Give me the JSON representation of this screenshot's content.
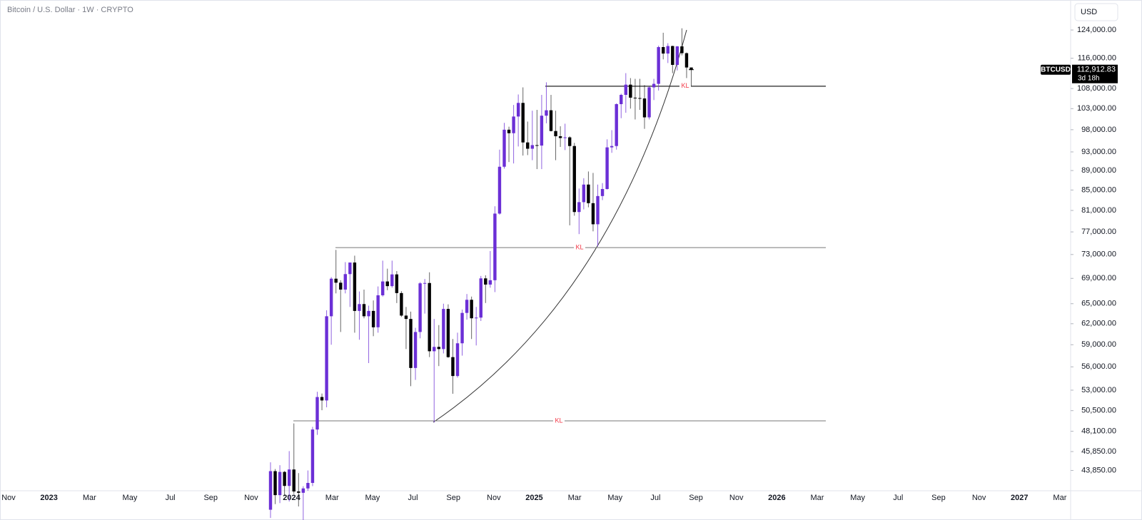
{
  "chart_data": {
    "type": "candlestick",
    "title": "Bitcoin / U.S. Dollar · 1W · CRYPTO",
    "currency_button": "USD",
    "log_scale": true,
    "up_color": "#6b2fd6",
    "down_color": "#000000",
    "ylim": [
      41800,
      133100
    ],
    "yticks": [
      {
        "value": 124000,
        "label": "124,000.00"
      },
      {
        "value": 116000,
        "label": "116,000.00"
      },
      {
        "value": 108000,
        "label": "108,000.00"
      },
      {
        "value": 103000,
        "label": "103,000.00"
      },
      {
        "value": 98000,
        "label": "98,000.00"
      },
      {
        "value": 93000,
        "label": "93,000.00"
      },
      {
        "value": 89000,
        "label": "89,000.00"
      },
      {
        "value": 85000,
        "label": "85,000.00"
      },
      {
        "value": 81000,
        "label": "81,000.00"
      },
      {
        "value": 77000,
        "label": "77,000.00"
      },
      {
        "value": 73000,
        "label": "73,000.00"
      },
      {
        "value": 69000,
        "label": "69,000.00"
      },
      {
        "value": 65000,
        "label": "65,000.00"
      },
      {
        "value": 62000,
        "label": "62,000.00"
      },
      {
        "value": 59000,
        "label": "59,000.00"
      },
      {
        "value": 56000,
        "label": "56,000.00"
      },
      {
        "value": 53000,
        "label": "53,000.00"
      },
      {
        "value": 50500,
        "label": "50,500.00"
      },
      {
        "value": 48100,
        "label": "48,100.00"
      },
      {
        "value": 45850,
        "label": "45,850.00"
      },
      {
        "value": 43850,
        "label": "43,850.00"
      }
    ],
    "x_labels": [
      "Nov",
      "2023",
      "Mar",
      "May",
      "Jul",
      "Sep",
      "Nov",
      "2024",
      "Mar",
      "May",
      "Jul",
      "Sep",
      "Nov",
      "2025",
      "Mar",
      "May",
      "Jul",
      "Sep",
      "Nov",
      "2026",
      "Mar",
      "May",
      "Jul",
      "Sep",
      "Nov",
      "2027",
      "Mar"
    ],
    "levels": [
      {
        "value": 108600,
        "label": "KL"
      },
      {
        "value": 74200,
        "label": "KL"
      },
      {
        "value": 49300,
        "label": "KL"
      }
    ],
    "last_price": {
      "symbol": "BTCUSD",
      "value": 112912.83,
      "label": "112,912.83",
      "countdown": "3d 18h"
    },
    "open": [
      39970,
      43780,
      41370,
      43700,
      42280,
      43950,
      41730,
      41600,
      42030,
      42580,
      48300,
      52150,
      51730,
      63100,
      68950,
      68300,
      67200,
      69700,
      71630,
      63900,
      64940,
      63100,
      63900,
      61480,
      66300,
      68500,
      67750,
      69650,
      66650,
      63200,
      62700,
      55850,
      60800,
      68200,
      68250,
      58100,
      58700,
      58400,
      64200,
      57300,
      54800,
      59200,
      63600,
      65600,
      62800,
      62900,
      69000,
      68000,
      68700,
      80400,
      89800,
      98000,
      97200,
      101100,
      104400,
      95100,
      93700,
      94500,
      94400,
      101300,
      102600,
      97700,
      96500,
      96100,
      96250,
      94300,
      80700,
      82600,
      86100,
      82400,
      78400,
      83800,
      85200,
      94000,
      94300,
      104100,
      106400,
      109000,
      105700,
      105600,
      105500,
      100900,
      108300,
      109200,
      119100,
      117300,
      119400,
      114200,
      119300,
      117400,
      113500
    ],
    "high": [
      44700,
      44000,
      44400,
      43800,
      45900,
      49000,
      43580,
      42250,
      43850,
      48600,
      52800,
      52580,
      64000,
      69200,
      73800,
      68700,
      71700,
      71300,
      72800,
      66900,
      67200,
      64700,
      65500,
      67700,
      71950,
      70600,
      71950,
      70200,
      66950,
      64500,
      63800,
      61400,
      68400,
      68900,
      70000,
      62700,
      61800,
      65000,
      64900,
      59800,
      60700,
      64100,
      66500,
      66100,
      64500,
      69400,
      69500,
      73600,
      81800,
      93500,
      99600,
      98700,
      103900,
      106500,
      108300,
      99900,
      102500,
      102700,
      106400,
      109600,
      106400,
      102500,
      98800,
      99400,
      96500,
      95000,
      85300,
      87400,
      88800,
      88500,
      86100,
      86400,
      95800,
      97900,
      104300,
      106700,
      112000,
      110700,
      110500,
      110500,
      108900,
      108500,
      110500,
      119500,
      123200,
      120200,
      119500,
      119400,
      124500,
      117600,
      113500
    ],
    "low": [
      39200,
      40500,
      40600,
      41300,
      40750,
      41500,
      40280,
      38550,
      41800,
      42260,
      47700,
      50550,
      50900,
      59000,
      66600,
      60800,
      66600,
      64500,
      60700,
      59700,
      62800,
      56500,
      60200,
      60700,
      66100,
      67100,
      67500,
      65100,
      63000,
      58400,
      53500,
      54300,
      59900,
      63500,
      57300,
      49100,
      56100,
      57800,
      57200,
      52550,
      54600,
      57500,
      62600,
      59800,
      58900,
      62400,
      65100,
      67500,
      66800,
      80200,
      89400,
      90800,
      90500,
      94200,
      92200,
      92300,
      91200,
      89300,
      89300,
      99500,
      97600,
      91200,
      94100,
      93400,
      78200,
      80000,
      76600,
      81200,
      81600,
      77100,
      74400,
      83000,
      85100,
      92800,
      93500,
      100700,
      102000,
      103000,
      100400,
      102700,
      98200,
      100400,
      105100,
      107500,
      115700,
      114700,
      112000,
      112700,
      116800,
      110700,
      108700
    ],
    "close": [
      43780,
      41370,
      43700,
      42280,
      43950,
      41730,
      41600,
      42030,
      42580,
      48300,
      52150,
      51730,
      63100,
      68950,
      68300,
      67200,
      69700,
      71630,
      63900,
      64940,
      63100,
      63900,
      61480,
      66300,
      68500,
      67750,
      69650,
      66650,
      63200,
      62700,
      55850,
      60800,
      68200,
      68250,
      58100,
      58700,
      58400,
      64200,
      57300,
      54800,
      59200,
      63600,
      65600,
      62800,
      62900,
      69000,
      68000,
      68700,
      80400,
      89800,
      98000,
      97200,
      101100,
      104400,
      95100,
      93700,
      94500,
      94400,
      101300,
      102600,
      97700,
      96500,
      96100,
      96250,
      94300,
      80700,
      82600,
      86100,
      82400,
      78400,
      83800,
      85200,
      94000,
      94300,
      104100,
      106400,
      109000,
      105700,
      105600,
      105500,
      100900,
      108300,
      109200,
      119100,
      117300,
      119400,
      114200,
      119300,
      117400,
      113500,
      112912.83
    ]
  }
}
